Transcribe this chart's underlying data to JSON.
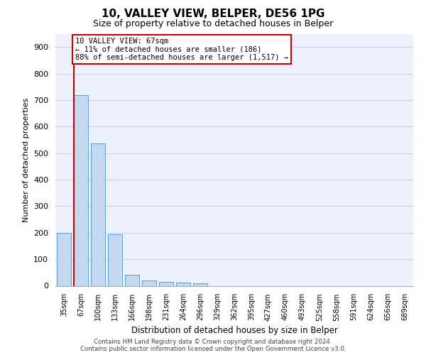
{
  "title_line1": "10, VALLEY VIEW, BELPER, DE56 1PG",
  "title_line2": "Size of property relative to detached houses in Belper",
  "xlabel": "Distribution of detached houses by size in Belper",
  "ylabel": "Number of detached properties",
  "categories": [
    "35sqm",
    "67sqm",
    "100sqm",
    "133sqm",
    "166sqm",
    "198sqm",
    "231sqm",
    "264sqm",
    "296sqm",
    "329sqm",
    "362sqm",
    "395sqm",
    "427sqm",
    "460sqm",
    "493sqm",
    "525sqm",
    "558sqm",
    "591sqm",
    "624sqm",
    "656sqm",
    "689sqm"
  ],
  "values": [
    200,
    718,
    537,
    193,
    42,
    20,
    15,
    12,
    10,
    0,
    0,
    0,
    0,
    0,
    0,
    0,
    0,
    0,
    0,
    0,
    0
  ],
  "bar_color": "#c5d8f0",
  "bar_edgecolor": "#5b9bd5",
  "vline_color": "#cc0000",
  "annotation_text": "10 VALLEY VIEW: 67sqm\n← 11% of detached houses are smaller (186)\n88% of semi-detached houses are larger (1,517) →",
  "annotation_box_edgecolor": "#cc0000",
  "ylim": [
    0,
    950
  ],
  "yticks": [
    0,
    100,
    200,
    300,
    400,
    500,
    600,
    700,
    800,
    900
  ],
  "background_color": "#edf1fb",
  "grid_color": "#c8cfe8",
  "footer_line1": "Contains HM Land Registry data © Crown copyright and database right 2024.",
  "footer_line2": "Contains public sector information licensed under the Open Government Licence v3.0."
}
